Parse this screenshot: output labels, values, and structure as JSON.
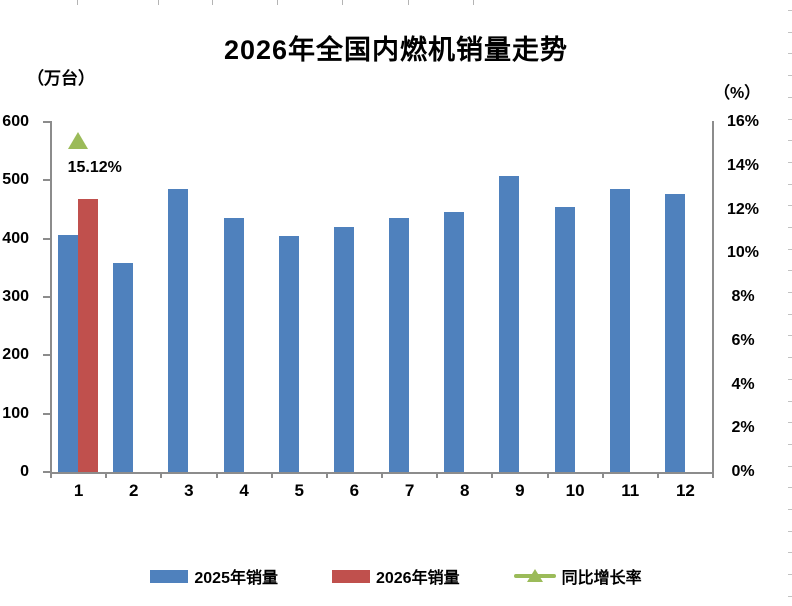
{
  "title_area": {
    "title": "2026年全国内燃机销量走势"
  },
  "chart_data": {
    "type": "bar",
    "title": "2026年全国内燃机销量走势",
    "categories": [
      "1",
      "2",
      "3",
      "4",
      "5",
      "6",
      "7",
      "8",
      "9",
      "10",
      "11",
      "12"
    ],
    "series": [
      {
        "name": "2025年销量",
        "kind": "bar",
        "color": "#4F81BD",
        "axis": "left",
        "values": [
          407,
          359,
          485,
          435,
          405,
          420,
          436,
          445,
          508,
          454,
          485,
          476
        ]
      },
      {
        "name": "2026年销量",
        "kind": "bar",
        "color": "#C0504D",
        "axis": "left",
        "values": [
          468.5,
          null,
          null,
          null,
          null,
          null,
          null,
          null,
          null,
          null,
          null,
          null
        ]
      },
      {
        "name": "同比增长率",
        "kind": "marker",
        "marker": "triangle-up",
        "color": "#9BBB59",
        "axis": "right",
        "values": [
          15.12,
          null,
          null,
          null,
          null,
          null,
          null,
          null,
          null,
          null,
          null,
          null
        ]
      }
    ],
    "left_axis": {
      "unit": "（万台）",
      "min": 0,
      "max": 600,
      "step": 100,
      "tick_labels": [
        "0",
        "100",
        "200",
        "300",
        "400",
        "500",
        "600"
      ]
    },
    "right_axis": {
      "unit": "（%）",
      "min": 0,
      "max": 16,
      "step": 2,
      "tick_labels": [
        "0%",
        "2%",
        "4%",
        "6%",
        "8%",
        "10%",
        "12%",
        "14%",
        "16%"
      ]
    },
    "annotations": [
      {
        "text": "15.12%",
        "series": "同比增长率",
        "category": "1",
        "value": 15.12
      }
    ],
    "legend": {
      "position": "bottom",
      "entries": [
        "2025年销量",
        "2026年销量",
        "同比增长率"
      ]
    },
    "grid": false,
    "axis_color": "#8c8c8c",
    "background": "#ffffff"
  }
}
